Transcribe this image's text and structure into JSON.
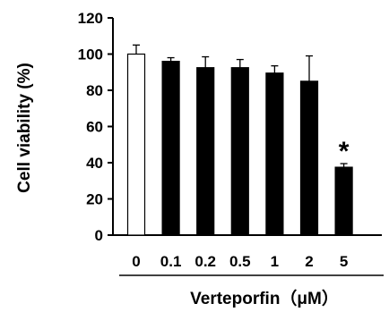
{
  "chart_data": {
    "type": "bar",
    "categories": [
      "0",
      "0.1",
      "0.2",
      "0.5",
      "1",
      "2",
      "5"
    ],
    "values": [
      100,
      96,
      92.5,
      92.5,
      89.5,
      85,
      37.5
    ],
    "errors": [
      5,
      2,
      6,
      4.5,
      4,
      14,
      2
    ],
    "bar_fills": [
      "white",
      "black",
      "black",
      "black",
      "black",
      "black",
      "black"
    ],
    "significance": [
      "",
      "",
      "",
      "",
      "",
      "",
      "*"
    ],
    "ylabel": "Cell viability (%)",
    "xlabel": "Verteporfin（μM）",
    "ylim": [
      0,
      120
    ],
    "yticks": [
      "0",
      "20",
      "40",
      "60",
      "80",
      "100",
      "120"
    ],
    "grid": false,
    "legend": "none"
  }
}
